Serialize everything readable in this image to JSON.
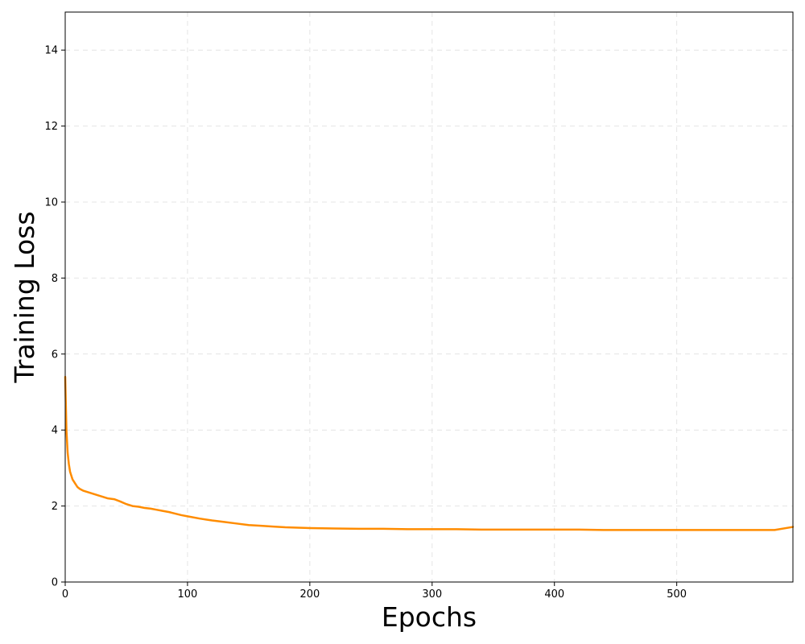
{
  "chart_data": {
    "type": "line",
    "title": "",
    "xlabel": "Epochs",
    "ylabel": "Training Loss",
    "xlim": [
      0,
      595
    ],
    "ylim": [
      0,
      15
    ],
    "xticks": [
      0,
      100,
      200,
      300,
      400,
      500
    ],
    "yticks": [
      0,
      2,
      4,
      6,
      8,
      10,
      12,
      14
    ],
    "grid": true,
    "legend": "none",
    "series": [
      {
        "color": "#ff8c00",
        "x": [
          0,
          1,
          2,
          3,
          4,
          5,
          6,
          8,
          10,
          12,
          15,
          20,
          25,
          30,
          35,
          40,
          45,
          50,
          55,
          60,
          65,
          70,
          75,
          80,
          85,
          90,
          95,
          100,
          110,
          120,
          130,
          140,
          150,
          160,
          170,
          180,
          190,
          200,
          220,
          240,
          260,
          280,
          300,
          320,
          340,
          360,
          380,
          400,
          420,
          440,
          460,
          480,
          500,
          520,
          540,
          560,
          580,
          595
        ],
        "y": [
          5.4,
          4.0,
          3.4,
          3.1,
          2.9,
          2.8,
          2.7,
          2.6,
          2.5,
          2.45,
          2.4,
          2.35,
          2.3,
          2.25,
          2.2,
          2.18,
          2.12,
          2.05,
          2.0,
          1.98,
          1.95,
          1.93,
          1.9,
          1.87,
          1.84,
          1.8,
          1.76,
          1.73,
          1.67,
          1.62,
          1.58,
          1.54,
          1.5,
          1.48,
          1.46,
          1.44,
          1.43,
          1.42,
          1.41,
          1.4,
          1.4,
          1.39,
          1.39,
          1.39,
          1.38,
          1.38,
          1.38,
          1.38,
          1.38,
          1.37,
          1.37,
          1.37,
          1.37,
          1.37,
          1.37,
          1.37,
          1.37,
          1.45
        ]
      }
    ]
  }
}
